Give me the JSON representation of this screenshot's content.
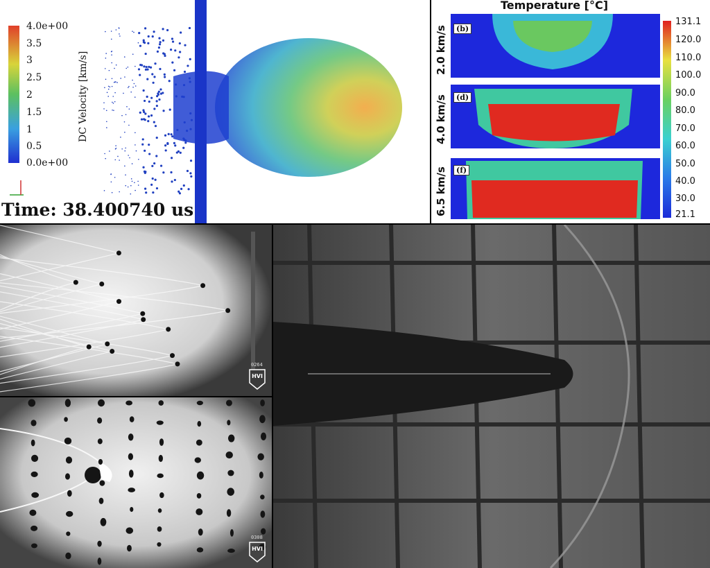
{
  "sim": {
    "colorbar_title": "DC Velocity [km/s]",
    "ticks": [
      "4.0e+00",
      "3.5",
      "3",
      "2.5",
      "2",
      "1.5",
      "1",
      "0.5",
      "0.0e+00"
    ],
    "time_label": "Time: 38.400740 us",
    "colors": {
      "low": "#1f3fcf",
      "mid": "#3ac0a0",
      "high": "#f09a2a"
    }
  },
  "temperature": {
    "title": "Temperature [°C]",
    "rows": [
      {
        "velocity": "2.0 km/s",
        "panel": "(b)"
      },
      {
        "velocity": "4.0 km/s",
        "panel": "(d)"
      },
      {
        "velocity": "6.5 km/s",
        "panel": "(f)"
      }
    ],
    "ticks": [
      "131.1",
      "120.0",
      "110.0",
      "100.0",
      "90.0",
      "80.0",
      "70.0",
      "60.0",
      "50.0",
      "40.0",
      "30.0",
      "21.1"
    ]
  },
  "shadowgraph_top": {
    "frame": "0264",
    "logo": "HVI"
  },
  "shadowgraph_bottom": {
    "frame": "0308",
    "logo": "HVI"
  }
}
